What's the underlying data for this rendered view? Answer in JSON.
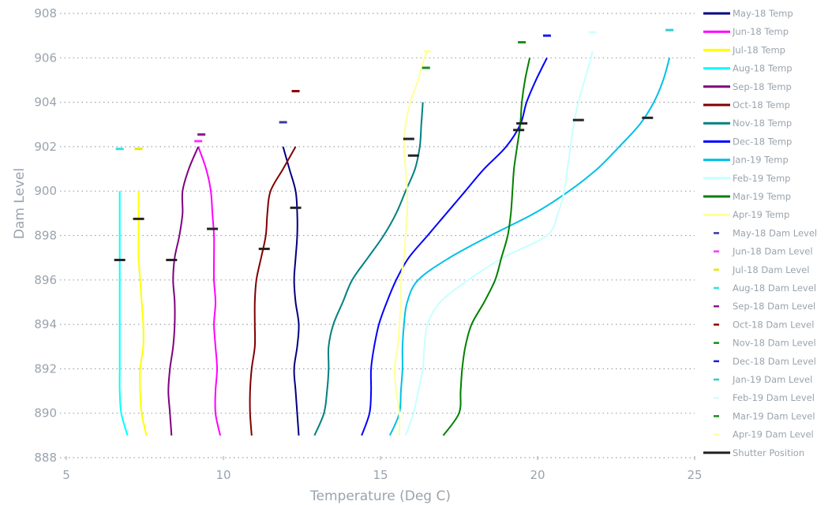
{
  "chart_data": {
    "type": "line",
    "xlabel": "Temperature (Deg C)",
    "ylabel": "Dam Level",
    "xlim": [
      5,
      25
    ],
    "ylim": [
      888,
      908
    ],
    "x_ticks": [
      "5",
      "10",
      "15",
      "20",
      "25"
    ],
    "y_ticks": [
      "888",
      "890",
      "892",
      "894",
      "896",
      "898",
      "900",
      "902",
      "904",
      "906",
      "908"
    ],
    "grid": "horizontal dotted",
    "legend_position": "right",
    "series": [
      {
        "name": "May-18 Temp",
        "color": "#000080",
        "points": [
          [
            12.4,
            889
          ],
          [
            12.35,
            890
          ],
          [
            12.3,
            891
          ],
          [
            12.25,
            892
          ],
          [
            12.35,
            893
          ],
          [
            12.4,
            894
          ],
          [
            12.3,
            895
          ],
          [
            12.25,
            896
          ],
          [
            12.3,
            897
          ],
          [
            12.35,
            898
          ],
          [
            12.35,
            899
          ],
          [
            12.3,
            900
          ],
          [
            12.1,
            901
          ],
          [
            11.9,
            902
          ]
        ]
      },
      {
        "name": "Jun-18 Temp",
        "color": "#ff00ff",
        "points": [
          [
            9.9,
            889
          ],
          [
            9.75,
            890
          ],
          [
            9.75,
            891
          ],
          [
            9.8,
            892
          ],
          [
            9.75,
            893
          ],
          [
            9.7,
            894
          ],
          [
            9.75,
            895
          ],
          [
            9.7,
            896
          ],
          [
            9.7,
            897
          ],
          [
            9.7,
            898
          ],
          [
            9.65,
            899
          ],
          [
            9.6,
            900
          ],
          [
            9.45,
            901
          ],
          [
            9.2,
            902
          ]
        ]
      },
      {
        "name": "Jul-18 Temp",
        "color": "#ffff00",
        "points": [
          [
            7.55,
            889
          ],
          [
            7.4,
            890
          ],
          [
            7.35,
            891
          ],
          [
            7.35,
            892
          ],
          [
            7.45,
            893
          ],
          [
            7.45,
            894
          ],
          [
            7.4,
            895
          ],
          [
            7.35,
            896
          ],
          [
            7.3,
            897
          ],
          [
            7.3,
            898
          ],
          [
            7.3,
            899
          ],
          [
            7.3,
            900
          ]
        ]
      },
      {
        "name": "Aug-18 Temp",
        "color": "#00ffff",
        "points": [
          [
            6.95,
            889
          ],
          [
            6.75,
            890
          ],
          [
            6.7,
            891
          ],
          [
            6.7,
            892
          ],
          [
            6.7,
            893
          ],
          [
            6.7,
            894
          ],
          [
            6.7,
            895
          ],
          [
            6.7,
            896
          ],
          [
            6.7,
            897
          ],
          [
            6.7,
            898
          ],
          [
            6.7,
            899
          ],
          [
            6.7,
            900
          ]
        ]
      },
      {
        "name": "Sep-18 Temp",
        "color": "#800080",
        "points": [
          [
            8.35,
            889
          ],
          [
            8.3,
            890
          ],
          [
            8.25,
            891
          ],
          [
            8.3,
            892
          ],
          [
            8.4,
            893
          ],
          [
            8.45,
            894
          ],
          [
            8.45,
            895
          ],
          [
            8.4,
            896
          ],
          [
            8.45,
            897
          ],
          [
            8.6,
            898
          ],
          [
            8.7,
            899
          ],
          [
            8.7,
            900
          ],
          [
            8.9,
            901
          ],
          [
            9.2,
            902
          ]
        ]
      },
      {
        "name": "Oct-18 Temp",
        "color": "#800000",
        "points": [
          [
            10.9,
            889
          ],
          [
            10.85,
            890
          ],
          [
            10.85,
            891
          ],
          [
            10.9,
            892
          ],
          [
            11.0,
            893
          ],
          [
            11.0,
            894
          ],
          [
            11.0,
            895
          ],
          [
            11.05,
            896
          ],
          [
            11.2,
            897
          ],
          [
            11.35,
            898
          ],
          [
            11.4,
            899
          ],
          [
            11.5,
            900
          ],
          [
            11.9,
            901
          ],
          [
            12.3,
            902
          ]
        ]
      },
      {
        "name": "Nov-18 Temp",
        "color": "#008080",
        "points": [
          [
            12.9,
            889
          ],
          [
            13.2,
            890
          ],
          [
            13.3,
            891
          ],
          [
            13.35,
            892
          ],
          [
            13.35,
            893
          ],
          [
            13.5,
            894
          ],
          [
            13.8,
            895
          ],
          [
            14.1,
            896
          ],
          [
            14.6,
            897
          ],
          [
            15.1,
            898
          ],
          [
            15.5,
            899
          ],
          [
            15.8,
            900
          ],
          [
            16.1,
            901
          ],
          [
            16.25,
            902
          ],
          [
            16.3,
            903
          ],
          [
            16.35,
            904
          ]
        ]
      },
      {
        "name": "Dec-18 Temp",
        "color": "#0000ff",
        "points": [
          [
            14.4,
            889
          ],
          [
            14.65,
            890
          ],
          [
            14.7,
            891
          ],
          [
            14.7,
            892
          ],
          [
            14.8,
            893
          ],
          [
            14.95,
            894
          ],
          [
            15.2,
            895
          ],
          [
            15.5,
            896
          ],
          [
            15.9,
            897
          ],
          [
            16.5,
            898
          ],
          [
            17.1,
            899
          ],
          [
            17.7,
            900
          ],
          [
            18.3,
            901
          ],
          [
            19.0,
            902
          ],
          [
            19.45,
            903
          ],
          [
            19.65,
            904
          ],
          [
            19.95,
            905
          ],
          [
            20.3,
            906
          ]
        ]
      },
      {
        "name": "Jan-19 Temp",
        "color": "#00c0e8",
        "points": [
          [
            15.3,
            889
          ],
          [
            15.6,
            890
          ],
          [
            15.65,
            891
          ],
          [
            15.7,
            892
          ],
          [
            15.7,
            893
          ],
          [
            15.75,
            894
          ],
          [
            15.85,
            895
          ],
          [
            16.2,
            896
          ],
          [
            17.2,
            897
          ],
          [
            18.5,
            898
          ],
          [
            19.9,
            899
          ],
          [
            21.0,
            900
          ],
          [
            21.9,
            901
          ],
          [
            22.6,
            902
          ],
          [
            23.25,
            903
          ],
          [
            23.7,
            904
          ],
          [
            24.0,
            905
          ],
          [
            24.2,
            906
          ]
        ]
      },
      {
        "name": "Feb-19 Temp",
        "color": "#c8ffff",
        "points": [
          [
            15.8,
            889
          ],
          [
            16.05,
            890
          ],
          [
            16.2,
            891
          ],
          [
            16.35,
            892
          ],
          [
            16.4,
            893
          ],
          [
            16.5,
            894
          ],
          [
            16.9,
            895
          ],
          [
            17.8,
            896
          ],
          [
            18.9,
            897
          ],
          [
            20.3,
            898
          ],
          [
            20.65,
            899
          ],
          [
            20.85,
            900
          ],
          [
            20.95,
            901
          ],
          [
            21.05,
            902
          ],
          [
            21.15,
            903
          ],
          [
            21.3,
            904
          ],
          [
            21.5,
            905
          ],
          [
            21.7,
            906
          ],
          [
            21.75,
            906.3
          ]
        ]
      },
      {
        "name": "Mar-19 Temp",
        "color": "#008000",
        "points": [
          [
            17.0,
            889
          ],
          [
            17.5,
            890
          ],
          [
            17.55,
            891
          ],
          [
            17.6,
            892
          ],
          [
            17.7,
            893
          ],
          [
            17.9,
            894
          ],
          [
            18.3,
            895
          ],
          [
            18.65,
            896
          ],
          [
            18.85,
            897
          ],
          [
            19.05,
            898
          ],
          [
            19.15,
            899
          ],
          [
            19.2,
            900
          ],
          [
            19.25,
            901
          ],
          [
            19.35,
            902
          ],
          [
            19.45,
            903
          ],
          [
            19.5,
            904
          ],
          [
            19.6,
            905
          ],
          [
            19.75,
            906
          ]
        ]
      },
      {
        "name": "Apr-19 Temp",
        "color": "#ffff99",
        "points": [
          [
            15.6,
            889
          ],
          [
            15.6,
            890
          ],
          [
            15.5,
            891
          ],
          [
            15.45,
            892
          ],
          [
            15.55,
            893
          ],
          [
            15.6,
            894
          ],
          [
            15.65,
            895
          ],
          [
            15.65,
            896
          ],
          [
            15.75,
            897
          ],
          [
            15.8,
            898
          ],
          [
            15.85,
            899
          ],
          [
            15.85,
            900
          ],
          [
            15.8,
            901
          ],
          [
            15.75,
            902
          ],
          [
            15.8,
            903
          ],
          [
            15.95,
            904
          ],
          [
            16.2,
            905
          ],
          [
            16.4,
            906
          ],
          [
            16.5,
            906.3
          ]
        ]
      }
    ],
    "dam_levels": [
      {
        "name": "May-18 Dam Level",
        "color": "#3a3a9a",
        "x": 11.9,
        "y": 903.1
      },
      {
        "name": "Jun-18 Dam Level",
        "color": "#ff33ff",
        "x": 9.2,
        "y": 902.25
      },
      {
        "name": "Jul-18 Dam Level",
        "color": "#e8e800",
        "x": 7.3,
        "y": 901.9
      },
      {
        "name": "Aug-18 Dam Level",
        "color": "#33e0e0",
        "x": 6.7,
        "y": 901.9
      },
      {
        "name": "Sep-18 Dam Level",
        "color": "#8b1a8b",
        "x": 9.3,
        "y": 902.55
      },
      {
        "name": "Oct-18 Dam Level",
        "color": "#8b0000",
        "x": 12.3,
        "y": 904.5
      },
      {
        "name": "Nov-18 Dam Level",
        "color": "#1a8c1a",
        "x": 16.45,
        "y": 905.55
      },
      {
        "name": "Dec-18 Dam Level",
        "color": "#1a1ae6",
        "x": 20.3,
        "y": 907.0
      },
      {
        "name": "Jan-19 Dam Level",
        "color": "#33cccc",
        "x": 24.2,
        "y": 907.25
      },
      {
        "name": "Feb-19 Dam Level",
        "color": "#d0ffff",
        "x": 21.75,
        "y": 907.15
      },
      {
        "name": "Mar-19 Dam Level",
        "color": "#1a8c1a",
        "x": 19.5,
        "y": 906.7
      },
      {
        "name": "Apr-19 Dam Level",
        "color": "#ffffaa",
        "x": 16.5,
        "y": 906.3
      }
    ],
    "shutter_positions": {
      "name": "Shutter Position",
      "color": "#222222",
      "points": [
        [
          6.7,
          896.9
        ],
        [
          7.3,
          898.75
        ],
        [
          8.35,
          896.9
        ],
        [
          9.65,
          898.3
        ],
        [
          11.3,
          897.4
        ],
        [
          12.3,
          899.25
        ],
        [
          15.9,
          902.35
        ],
        [
          16.05,
          901.6
        ],
        [
          19.4,
          902.75
        ],
        [
          19.5,
          903.05
        ],
        [
          21.3,
          903.2
        ],
        [
          23.5,
          903.3
        ]
      ]
    }
  }
}
